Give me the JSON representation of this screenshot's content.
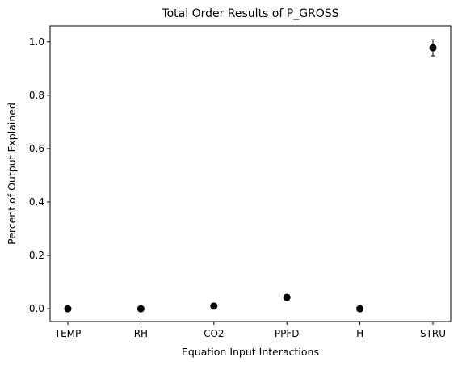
{
  "chart_data": {
    "type": "scatter",
    "title": "Total Order Results of P_GROSS",
    "xlabel": "Equation Input Interactions",
    "ylabel": "Percent of Output Explained",
    "categories": [
      "TEMP",
      "RH",
      "CO2",
      "PPFD",
      "H",
      "STRU"
    ],
    "values": [
      0.0,
      0.0,
      0.01,
      0.043,
      0.0,
      0.978
    ],
    "errors": [
      0.0,
      0.0,
      0.0,
      0.0,
      0.0,
      0.03
    ],
    "ylim": [
      -0.048,
      1.06
    ],
    "yticks": [
      0.0,
      0.2,
      0.4,
      0.6,
      0.8,
      1.0
    ],
    "ytick_labels": [
      "0.0",
      "0.2",
      "0.4",
      "0.6",
      "0.8",
      "1.0"
    ],
    "grid": false,
    "marker_color": "#000000"
  }
}
